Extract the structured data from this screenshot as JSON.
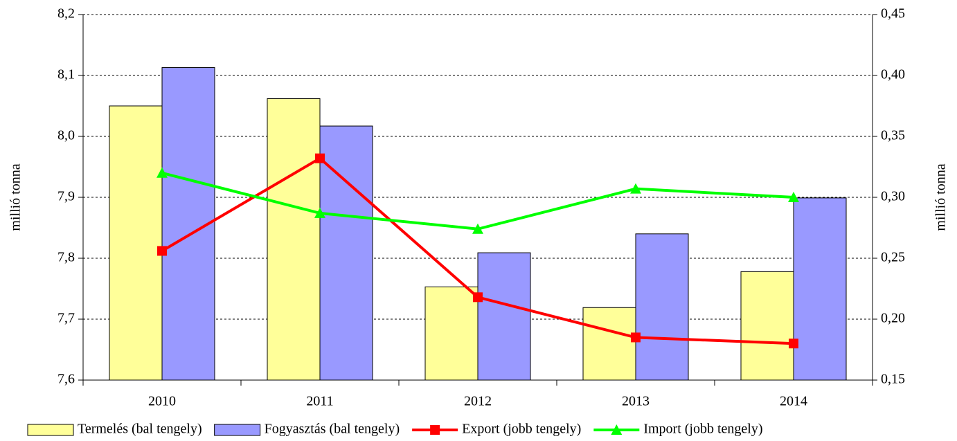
{
  "chart_data": {
    "type": "bar",
    "y_label": "millió tonna",
    "y2_label": "millió tonna",
    "categories": [
      "2010",
      "2011",
      "2012",
      "2013",
      "2014"
    ],
    "series": [
      {
        "name": "Termelés (bal tengely)",
        "type": "bar",
        "color": "#ffff99",
        "values": [
          8.05,
          8.062,
          7.753,
          7.719,
          7.778
        ]
      },
      {
        "name": "Fogyasztás (bal tengely)",
        "type": "bar",
        "color": "#9999ff",
        "values": [
          8.113,
          8.017,
          7.809,
          7.84,
          7.899
        ]
      },
      {
        "name": "Export (jobb tengely)",
        "type": "line",
        "marker": "square",
        "axis": "y2",
        "color": "#ff0000",
        "values": [
          0.256,
          0.332,
          0.218,
          0.185,
          0.18
        ]
      },
      {
        "name": "Import (jobb tengely)",
        "type": "line",
        "marker": "triangle",
        "axis": "y2",
        "color": "#00ff00",
        "values": [
          0.32,
          0.287,
          0.274,
          0.307,
          0.3
        ]
      }
    ],
    "ylim": [
      7.6,
      8.2
    ],
    "yticks": [
      {
        "value": 7.6,
        "label": "7,6"
      },
      {
        "value": 7.7,
        "label": "7,7"
      },
      {
        "value": 7.8,
        "label": "7,8"
      },
      {
        "value": 7.9,
        "label": "7,9"
      },
      {
        "value": 8.0,
        "label": "8,0"
      },
      {
        "value": 8.1,
        "label": "8,1"
      },
      {
        "value": 8.2,
        "label": "8,2"
      }
    ],
    "y2lim": [
      0.15,
      0.45
    ],
    "y2ticks": [
      {
        "value": 0.15,
        "label": "0,15"
      },
      {
        "value": 0.2,
        "label": "0,20"
      },
      {
        "value": 0.25,
        "label": "0,25"
      },
      {
        "value": 0.3,
        "label": "0,30"
      },
      {
        "value": 0.35,
        "label": "0,35"
      },
      {
        "value": 0.4,
        "label": "0,40"
      },
      {
        "value": 0.45,
        "label": "0,45"
      }
    ],
    "grid": true,
    "legend": "bottom"
  }
}
